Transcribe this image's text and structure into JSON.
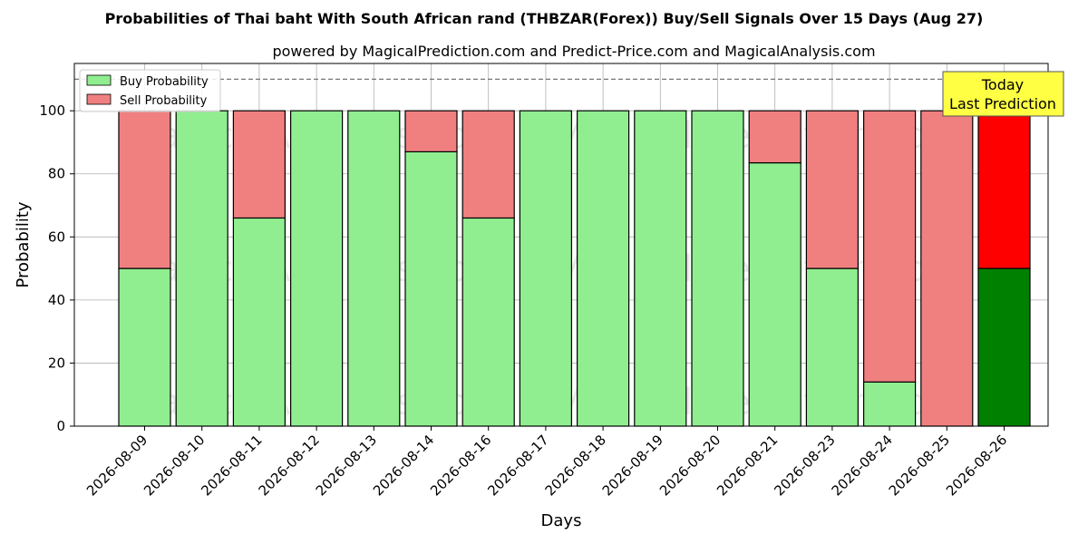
{
  "chart_data": {
    "type": "bar",
    "stacked": true,
    "title": "Probabilities of Thai baht With South African rand (THBZAR(Forex)) Buy/Sell Signals Over 15 Days (Aug 27)",
    "subtitle": "powered by MagicalPrediction.com and Predict-Price.com and MagicalAnalysis.com",
    "xlabel": "Days",
    "ylabel": "Probability",
    "ylim": [
      0,
      115
    ],
    "yticks": [
      0,
      20,
      40,
      60,
      80,
      100
    ],
    "threshold_line": 110,
    "grid": true,
    "legend_position": "top-left",
    "categories": [
      "2026-08-09",
      "2026-08-10",
      "2026-08-11",
      "2026-08-12",
      "2026-08-13",
      "2026-08-14",
      "2026-08-16",
      "2026-08-17",
      "2026-08-18",
      "2026-08-19",
      "2026-08-20",
      "2026-08-21",
      "2026-08-23",
      "2026-08-24",
      "2026-08-25",
      "2026-08-26"
    ],
    "series": [
      {
        "name": "Buy Probability",
        "color": "#90EE90",
        "highlight_color": "#008000",
        "values": [
          50,
          100,
          66,
          100,
          100,
          87,
          66,
          100,
          100,
          100,
          100,
          83.5,
          50,
          14,
          0,
          50
        ]
      },
      {
        "name": "Sell Probability",
        "color": "#F08080",
        "highlight_color": "#FF0000",
        "values": [
          50,
          0,
          34,
          0,
          0,
          13,
          34,
          0,
          0,
          0,
          0,
          16.5,
          50,
          86,
          100,
          50
        ]
      }
    ],
    "highlight_index": 15,
    "annotation": {
      "line1": "Today",
      "line2": "Last Prediction",
      "background": "#FFFF44"
    },
    "watermarks": [
      "MagicalAnalysis.com",
      "MagicalPrediction.com"
    ]
  }
}
